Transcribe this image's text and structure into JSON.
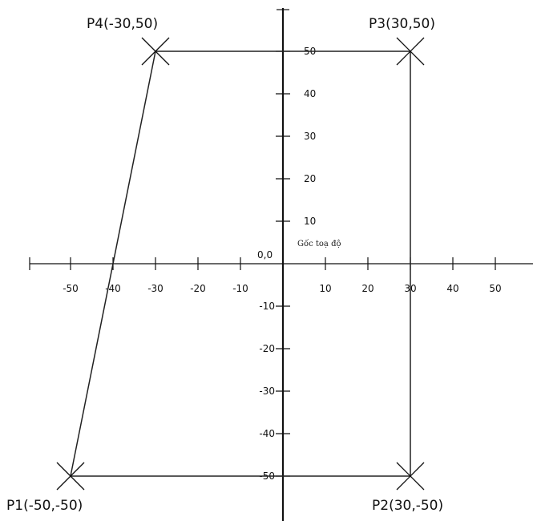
{
  "chart_data": {
    "type": "diagram",
    "title": "",
    "x_ticks": [
      -50,
      -40,
      -30,
      -20,
      -10,
      10,
      20,
      30,
      40,
      50
    ],
    "y_ticks": [
      50,
      40,
      30,
      20,
      10,
      -10,
      -20,
      -30,
      -40,
      -50
    ],
    "origin_label": "0,0",
    "origin_note": "Gốc toạ độ",
    "points": [
      {
        "name": "P1",
        "label": "P1(-50,-50)",
        "x": -50,
        "y": -50
      },
      {
        "name": "P2",
        "label": "P2(30,-50)",
        "x": 30,
        "y": -50
      },
      {
        "name": "P3",
        "label": "P3(30,50)",
        "x": 30,
        "y": 50
      },
      {
        "name": "P4",
        "label": "P4(-30,50)",
        "x": -30,
        "y": 50
      }
    ],
    "polygon": [
      "P1",
      "P2",
      "P3",
      "P4"
    ],
    "colors": {
      "axis": "#111111",
      "polygon": "#222222",
      "marker": "#111111"
    }
  }
}
